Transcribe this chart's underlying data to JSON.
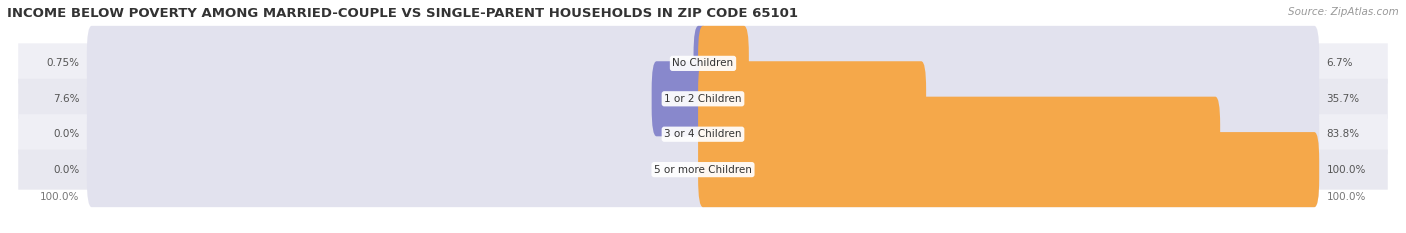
{
  "title": "INCOME BELOW POVERTY AMONG MARRIED-COUPLE VS SINGLE-PARENT HOUSEHOLDS IN ZIP CODE 65101",
  "source": "Source: ZipAtlas.com",
  "categories": [
    "No Children",
    "1 or 2 Children",
    "3 or 4 Children",
    "5 or more Children"
  ],
  "married_values": [
    0.75,
    7.6,
    0.0,
    0.0
  ],
  "single_values": [
    6.7,
    35.7,
    83.8,
    100.0
  ],
  "married_color": "#8888cc",
  "single_color": "#f5a84a",
  "bar_bg_color": "#e2e2ee",
  "row_bg_even": "#efeff5",
  "row_bg_odd": "#e8e8f0",
  "title_fontsize": 9.5,
  "source_fontsize": 7.5,
  "label_fontsize": 7.5,
  "category_fontsize": 7.5,
  "legend_fontsize": 8,
  "max_value": 100.0,
  "background_color": "#ffffff"
}
